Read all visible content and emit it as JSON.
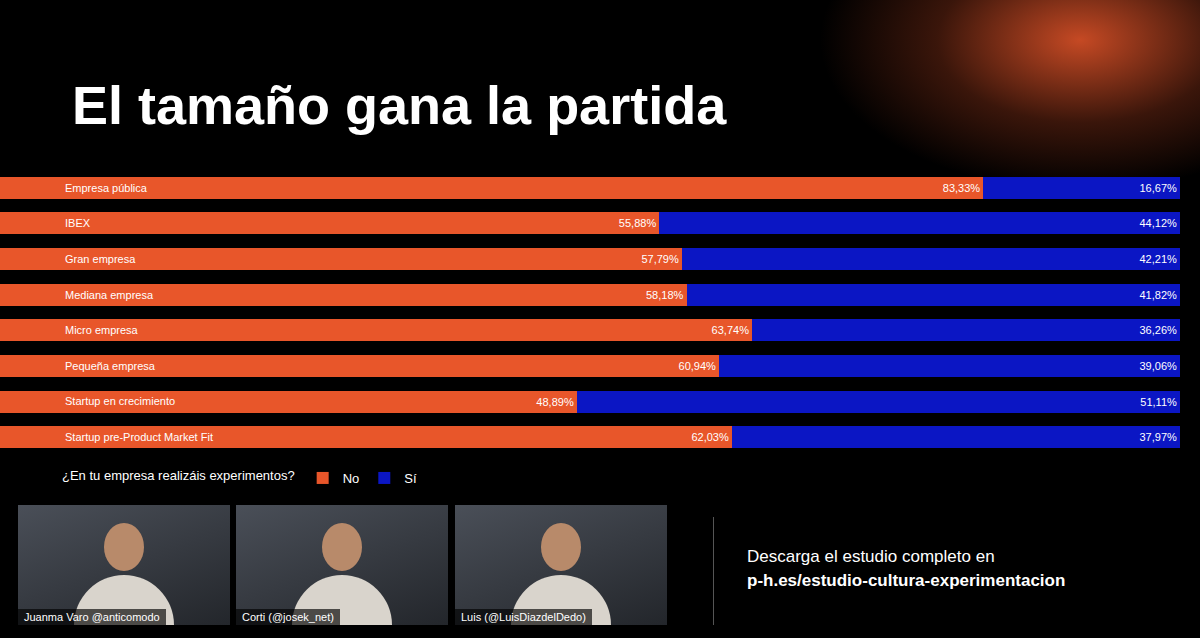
{
  "chart_data": {
    "type": "bar",
    "title": "El tamaño gana la partida",
    "orientation": "horizontal",
    "stacked": true,
    "data_labels": true,
    "tick_labels": "y",
    "legend": "bottom",
    "xlim": [
      0,
      100
    ],
    "annotations": [
      {
        "text": "¿En tu empresa realizáis experimentos?"
      }
    ],
    "categories": [
      "Empresa pública",
      "IBEX",
      "Gran empresa",
      "Mediana empresa",
      "Micro empresa",
      "Pequeña empresa",
      "Startup en crecimiento",
      "Startup pre-Product Market Fit"
    ],
    "series": [
      {
        "name": "No",
        "color": "#e8562a",
        "values": [
          83.33,
          55.88,
          57.79,
          58.18,
          63.74,
          60.94,
          48.89,
          62.03
        ],
        "value_labels": [
          "83,33%",
          "55,88%",
          "57,79%",
          "58,18%",
          "63,74%",
          "60,94%",
          "48,89%",
          "62,03%"
        ]
      },
      {
        "name": "Sí",
        "color": "#0b16c4",
        "values": [
          16.67,
          44.12,
          42.21,
          41.82,
          36.26,
          39.06,
          51.11,
          37.97
        ],
        "value_labels": [
          "16,67%",
          "44,12%",
          "42,21%",
          "41,82%",
          "36,26%",
          "39,06%",
          "51,11%",
          "37,97%"
        ]
      }
    ]
  },
  "footer": {
    "participants": [
      "Juanma Varo @anticomodo",
      "Corti (@josek_net)",
      "Luis (@LuisDiazdelDedo)"
    ],
    "download": {
      "text": "Descarga el estudio completo en",
      "url": "p-h.es/estudio-cultura-experimentacion"
    }
  }
}
